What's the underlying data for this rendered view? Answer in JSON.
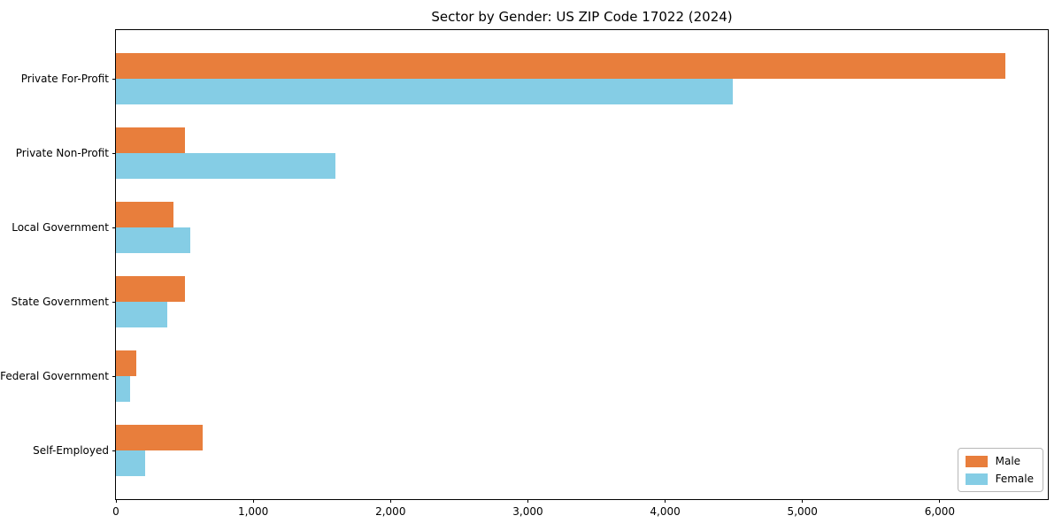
{
  "chart_data": {
    "type": "bar",
    "orientation": "horizontal",
    "title": "Sector by Gender: US ZIP Code 17022 (2024)",
    "categories": [
      "Private For-Profit",
      "Private Non-Profit",
      "Local Government",
      "State Government",
      "Federal Government",
      "Self-Employed"
    ],
    "series": [
      {
        "name": "Male",
        "color": "#E87E3C",
        "values": [
          6480,
          500,
          420,
          500,
          150,
          630
        ]
      },
      {
        "name": "Female",
        "color": "#85CDE5",
        "values": [
          4490,
          1600,
          540,
          375,
          100,
          210
        ]
      }
    ],
    "xlabel": "",
    "ylabel": "",
    "xlim": [
      0,
      6800
    ],
    "x_ticks": [
      {
        "value": 0,
        "label": "0"
      },
      {
        "value": 1000,
        "label": "1,000"
      },
      {
        "value": 2000,
        "label": "2,000"
      },
      {
        "value": 3000,
        "label": "3,000"
      },
      {
        "value": 4000,
        "label": "4,000"
      },
      {
        "value": 5000,
        "label": "5,000"
      },
      {
        "value": 6000,
        "label": "6,000"
      }
    ],
    "grid": false,
    "legend_position": "lower right",
    "background_color": "#ffffff",
    "spine_color": "#000000"
  }
}
